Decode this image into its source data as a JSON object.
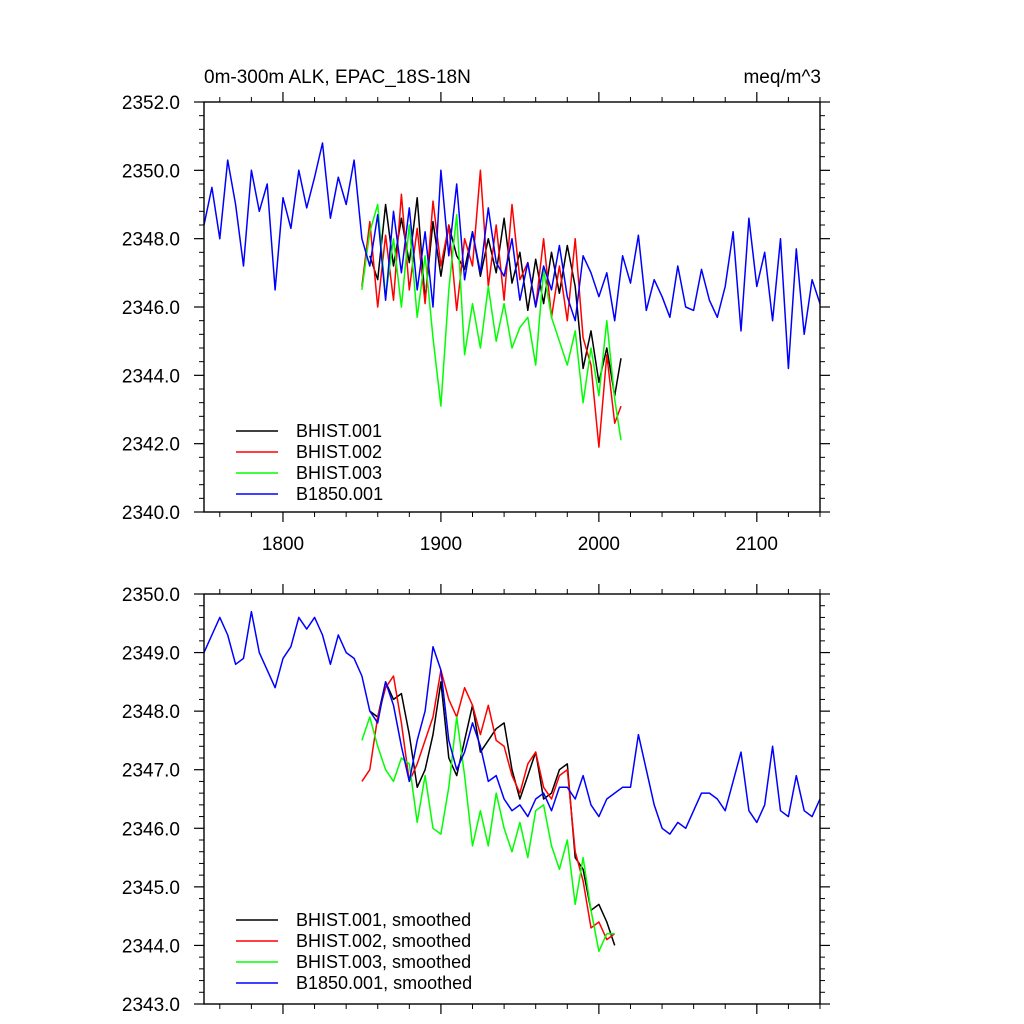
{
  "chart_data": [
    {
      "type": "line",
      "title": "0m-300m ALK, EPAC_18S-18N",
      "units": "meq/m^3",
      "xlim": [
        1750,
        2140
      ],
      "ylim": [
        2340.0,
        2352.0
      ],
      "x_ticks": [
        1800,
        1900,
        2000,
        2100
      ],
      "x_tick_labels": [
        "1800",
        "1900",
        "2000",
        "2100"
      ],
      "y_ticks": [
        2340.0,
        2342.0,
        2344.0,
        2346.0,
        2348.0,
        2350.0,
        2352.0
      ],
      "y_tick_labels": [
        "2340.0",
        "2342.0",
        "2344.0",
        "2346.0",
        "2348.0",
        "2350.0",
        "2352.0"
      ],
      "grid": false,
      "legend_position": "bottom-left",
      "series": [
        {
          "name": "BHIST.001",
          "color": "#000000",
          "x": [
            1855,
            1860,
            1865,
            1870,
            1875,
            1880,
            1885,
            1890,
            1895,
            1900,
            1905,
            1910,
            1915,
            1920,
            1925,
            1930,
            1935,
            1940,
            1945,
            1950,
            1955,
            1960,
            1965,
            1970,
            1975,
            1980,
            1985,
            1990,
            1995,
            2000,
            2005,
            2010,
            2014
          ],
          "y": [
            2347.5,
            2346.8,
            2349.0,
            2347.2,
            2348.6,
            2347.3,
            2349.2,
            2346.2,
            2348.5,
            2346.9,
            2348.4,
            2347.5,
            2347.1,
            2348.2,
            2346.9,
            2348.0,
            2347.0,
            2348.6,
            2346.7,
            2347.6,
            2345.9,
            2347.4,
            2346.1,
            2347.6,
            2346.4,
            2347.8,
            2346.6,
            2344.2,
            2345.3,
            2343.8,
            2344.8,
            2343.4,
            2344.5
          ]
        },
        {
          "name": "BHIST.002",
          "color": "#ff0000",
          "x": [
            1850,
            1855,
            1860,
            1865,
            1870,
            1875,
            1880,
            1885,
            1890,
            1895,
            1900,
            1905,
            1910,
            1915,
            1920,
            1925,
            1930,
            1935,
            1940,
            1945,
            1950,
            1955,
            1960,
            1965,
            1970,
            1975,
            1980,
            1985,
            1990,
            1995,
            2000,
            2005,
            2010,
            2014
          ],
          "y": [
            2346.6,
            2348.5,
            2346.0,
            2348.1,
            2346.2,
            2349.3,
            2346.5,
            2348.3,
            2346.1,
            2349.1,
            2347.2,
            2348.4,
            2345.9,
            2348.0,
            2347.2,
            2350.0,
            2346.6,
            2348.4,
            2346.2,
            2349.0,
            2346.8,
            2347.3,
            2346.0,
            2348.0,
            2345.7,
            2347.2,
            2345.6,
            2348.0,
            2345.1,
            2344.3,
            2341.9,
            2344.6,
            2342.6,
            2343.1
          ]
        },
        {
          "name": "BHIST.003",
          "color": "#00ff00",
          "x": [
            1850,
            1855,
            1860,
            1865,
            1870,
            1875,
            1880,
            1885,
            1890,
            1895,
            1900,
            1905,
            1910,
            1915,
            1920,
            1925,
            1930,
            1935,
            1940,
            1945,
            1950,
            1955,
            1960,
            1965,
            1970,
            1975,
            1980,
            1985,
            1990,
            1995,
            2000,
            2005,
            2010,
            2014
          ],
          "y": [
            2346.5,
            2348.2,
            2349.0,
            2346.3,
            2348.0,
            2346.0,
            2348.4,
            2345.7,
            2347.5,
            2345.1,
            2343.1,
            2346.5,
            2348.7,
            2344.6,
            2346.1,
            2344.8,
            2346.6,
            2345.0,
            2346.1,
            2344.8,
            2345.4,
            2345.7,
            2344.3,
            2347.1,
            2345.7,
            2345.0,
            2344.3,
            2345.3,
            2343.2,
            2344.8,
            2343.4,
            2345.6,
            2343.3,
            2342.1
          ]
        },
        {
          "name": "B1850.001",
          "color": "#0000ff",
          "x": [
            1750,
            1755,
            1760,
            1765,
            1770,
            1775,
            1780,
            1785,
            1790,
            1795,
            1800,
            1805,
            1810,
            1815,
            1820,
            1825,
            1830,
            1835,
            1840,
            1845,
            1850,
            1855,
            1860,
            1865,
            1870,
            1875,
            1880,
            1885,
            1890,
            1895,
            1900,
            1905,
            1910,
            1915,
            1920,
            1925,
            1930,
            1935,
            1940,
            1945,
            1950,
            1955,
            1960,
            1965,
            1970,
            1975,
            1980,
            1985,
            1990,
            1995,
            2000,
            2005,
            2010,
            2015,
            2020,
            2025,
            2030,
            2035,
            2040,
            2045,
            2050,
            2055,
            2060,
            2065,
            2070,
            2075,
            2080,
            2085,
            2090,
            2095,
            2100,
            2105,
            2110,
            2115,
            2120,
            2125,
            2130,
            2135,
            2140
          ],
          "y": [
            2348.4,
            2349.5,
            2348.0,
            2350.3,
            2349.0,
            2347.2,
            2350.0,
            2348.8,
            2349.6,
            2346.5,
            2349.2,
            2348.3,
            2350.0,
            2348.9,
            2349.8,
            2350.8,
            2348.6,
            2349.8,
            2349.0,
            2350.3,
            2348.0,
            2347.2,
            2348.7,
            2346.2,
            2348.8,
            2347.0,
            2348.9,
            2346.5,
            2348.2,
            2346.0,
            2350.0,
            2347.5,
            2349.6,
            2346.8,
            2348.2,
            2347.0,
            2348.9,
            2347.3,
            2346.9,
            2348.0,
            2346.2,
            2347.3,
            2346.0,
            2347.2,
            2346.5,
            2347.8,
            2346.3,
            2345.6,
            2347.5,
            2347.0,
            2346.3,
            2347.0,
            2345.6,
            2347.5,
            2346.7,
            2348.1,
            2345.9,
            2346.8,
            2346.3,
            2345.7,
            2347.2,
            2346.0,
            2345.9,
            2347.1,
            2346.2,
            2345.7,
            2346.6,
            2348.2,
            2345.3,
            2348.6,
            2346.6,
            2347.6,
            2345.6,
            2348.0,
            2344.2,
            2347.7,
            2345.2,
            2346.8,
            2346.1
          ]
        }
      ]
    },
    {
      "type": "line",
      "xlim": [
        1750,
        2140
      ],
      "ylim": [
        2343.0,
        2350.0
      ],
      "x_ticks": [
        1800,
        1900,
        2000,
        2100
      ],
      "y_ticks": [
        2343.0,
        2344.0,
        2345.0,
        2346.0,
        2347.0,
        2348.0,
        2349.0,
        2350.0
      ],
      "y_tick_labels": [
        "2343.0",
        "2344.0",
        "2345.0",
        "2346.0",
        "2347.0",
        "2348.0",
        "2349.0",
        "2350.0"
      ],
      "grid": false,
      "legend_position": "bottom-left",
      "series": [
        {
          "name": "BHIST.001, smoothed",
          "color": "#000000",
          "x": [
            1855,
            1860,
            1865,
            1870,
            1875,
            1880,
            1885,
            1890,
            1895,
            1900,
            1905,
            1910,
            1915,
            1920,
            1925,
            1930,
            1935,
            1940,
            1945,
            1950,
            1955,
            1960,
            1965,
            1970,
            1975,
            1980,
            1985,
            1990,
            1995,
            2000,
            2005,
            2010
          ],
          "y": [
            2348.0,
            2347.9,
            2348.5,
            2348.2,
            2348.3,
            2347.6,
            2346.7,
            2347.0,
            2347.6,
            2348.5,
            2347.2,
            2346.9,
            2347.5,
            2348.1,
            2347.3,
            2347.5,
            2347.7,
            2347.8,
            2347.0,
            2346.5,
            2346.9,
            2347.3,
            2346.5,
            2346.6,
            2347.0,
            2347.1,
            2345.5,
            2345.3,
            2344.6,
            2344.7,
            2344.4,
            2344.0
          ]
        },
        {
          "name": "BHIST.002, smoothed",
          "color": "#ff0000",
          "x": [
            1850,
            1855,
            1860,
            1865,
            1870,
            1875,
            1880,
            1885,
            1890,
            1895,
            1900,
            1905,
            1910,
            1915,
            1920,
            1925,
            1930,
            1935,
            1940,
            1945,
            1950,
            1955,
            1960,
            1965,
            1970,
            1975,
            1980,
            1985,
            1990,
            1995,
            2000,
            2005,
            2010
          ],
          "y": [
            2346.8,
            2347.0,
            2347.9,
            2348.4,
            2348.6,
            2347.8,
            2346.8,
            2347.1,
            2347.5,
            2347.9,
            2348.7,
            2348.2,
            2347.9,
            2348.4,
            2348.1,
            2347.6,
            2348.1,
            2347.5,
            2347.4,
            2346.9,
            2346.6,
            2347.1,
            2347.3,
            2346.7,
            2346.5,
            2346.9,
            2347.0,
            2345.6,
            2345.1,
            2344.3,
            2344.4,
            2344.1,
            2344.2
          ]
        },
        {
          "name": "BHIST.003, smoothed",
          "color": "#00ff00",
          "x": [
            1850,
            1855,
            1860,
            1865,
            1870,
            1875,
            1880,
            1885,
            1890,
            1895,
            1900,
            1905,
            1910,
            1915,
            1920,
            1925,
            1930,
            1935,
            1940,
            1945,
            1950,
            1955,
            1960,
            1965,
            1970,
            1975,
            1980,
            1985,
            1990,
            1995,
            2000,
            2005,
            2010
          ],
          "y": [
            2347.5,
            2347.9,
            2347.4,
            2347.0,
            2346.8,
            2347.2,
            2347.1,
            2346.1,
            2346.9,
            2346.0,
            2345.9,
            2346.7,
            2347.9,
            2346.9,
            2345.7,
            2346.3,
            2345.7,
            2346.6,
            2346.0,
            2345.6,
            2346.1,
            2345.5,
            2346.3,
            2346.4,
            2345.7,
            2345.3,
            2345.8,
            2344.7,
            2345.5,
            2344.6,
            2343.9,
            2344.2,
            2344.2
          ]
        },
        {
          "name": "B1850.001, smoothed",
          "color": "#0000ff",
          "x": [
            1750,
            1755,
            1760,
            1765,
            1770,
            1775,
            1780,
            1785,
            1790,
            1795,
            1800,
            1805,
            1810,
            1815,
            1820,
            1825,
            1830,
            1835,
            1840,
            1845,
            1850,
            1855,
            1860,
            1865,
            1870,
            1875,
            1880,
            1885,
            1890,
            1895,
            1900,
            1905,
            1910,
            1915,
            1920,
            1925,
            1930,
            1935,
            1940,
            1945,
            1950,
            1955,
            1960,
            1965,
            1970,
            1975,
            1980,
            1985,
            1990,
            1995,
            2000,
            2005,
            2010,
            2015,
            2020,
            2025,
            2030,
            2035,
            2040,
            2045,
            2050,
            2055,
            2060,
            2065,
            2070,
            2075,
            2080,
            2085,
            2090,
            2095,
            2100,
            2105,
            2110,
            2115,
            2120,
            2125,
            2130,
            2135,
            2140
          ],
          "y": [
            2349.0,
            2349.3,
            2349.6,
            2349.3,
            2348.8,
            2348.9,
            2349.7,
            2349.0,
            2348.7,
            2348.4,
            2348.9,
            2349.1,
            2349.6,
            2349.4,
            2349.6,
            2349.3,
            2348.8,
            2349.3,
            2349.0,
            2348.9,
            2348.6,
            2348.0,
            2347.8,
            2348.5,
            2348.1,
            2347.4,
            2346.8,
            2347.5,
            2348.0,
            2349.1,
            2348.7,
            2347.5,
            2347.0,
            2347.3,
            2347.8,
            2347.4,
            2346.8,
            2346.9,
            2346.5,
            2346.3,
            2346.4,
            2346.2,
            2346.5,
            2346.6,
            2346.3,
            2346.7,
            2346.7,
            2346.5,
            2346.9,
            2346.4,
            2346.2,
            2346.5,
            2346.6,
            2346.7,
            2346.7,
            2347.6,
            2347.0,
            2346.4,
            2346.0,
            2345.9,
            2346.1,
            2346.0,
            2346.3,
            2346.6,
            2346.6,
            2346.5,
            2346.3,
            2346.8,
            2347.3,
            2346.3,
            2346.1,
            2346.4,
            2347.4,
            2346.3,
            2346.2,
            2346.9,
            2346.3,
            2346.2,
            2346.5
          ]
        }
      ]
    }
  ]
}
